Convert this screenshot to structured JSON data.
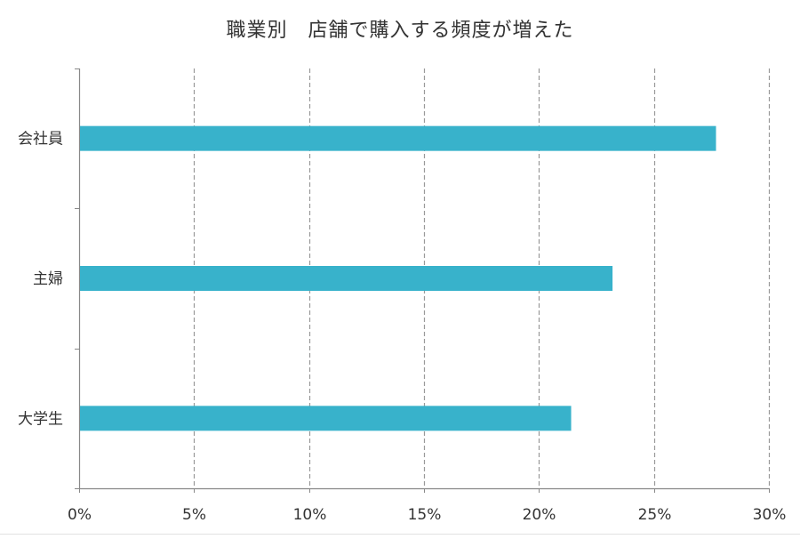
{
  "chart_data": {
    "type": "bar",
    "orientation": "horizontal",
    "title": "職業別　店舗で購入する頻度が増えた",
    "categories": [
      "会社員",
      "主婦",
      "大学生"
    ],
    "values": [
      0.277,
      0.232,
      0.214
    ],
    "xlim": [
      0,
      0.3
    ],
    "x_ticks": [
      0,
      0.05,
      0.1,
      0.15,
      0.2,
      0.25,
      0.3
    ],
    "x_tick_labels": [
      "0%",
      "5%",
      "10%",
      "15%",
      "20%",
      "25%",
      "30%"
    ],
    "xlabel": "",
    "ylabel": "",
    "grid": "vertical dashed",
    "legend": "none",
    "bar_color": "#38b2cb",
    "grid_color": "#999999",
    "axis_color": "#888888"
  }
}
